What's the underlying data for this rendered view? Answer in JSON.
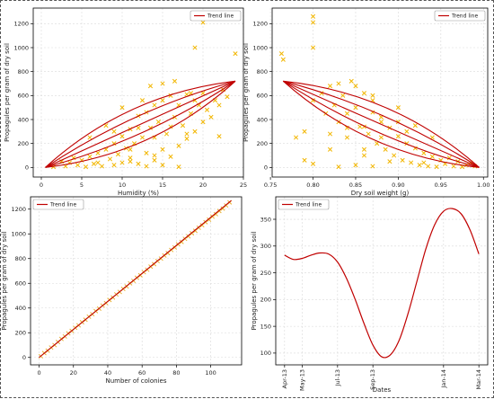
{
  "colors": {
    "trend": "#c00000",
    "marker": "#f2b600",
    "grid": "#d9d9d9",
    "axis": "#000000",
    "legend_border": "#999999"
  },
  "chart_data": [
    {
      "type": "scatter",
      "ylabel": "Propagules per gram of dry soil",
      "xlabel": "Humidity (%)",
      "legend": "Trend line",
      "legend_position": "top-right",
      "grid": true,
      "xlim": [
        -1,
        25
      ],
      "ylim": [
        -80,
        1330
      ],
      "xticks": [
        0,
        5,
        10,
        15,
        20,
        25
      ],
      "yticks": [
        0,
        200,
        400,
        600,
        800,
        1000,
        1200
      ],
      "trend_lines": [
        {
          "x": [
            0.5,
            24
          ],
          "y": [
            0,
            720
          ],
          "curvature": 0.16
        },
        {
          "x": [
            0.5,
            24
          ],
          "y": [
            0,
            720
          ],
          "curvature": 0.08
        },
        {
          "x": [
            0.5,
            24
          ],
          "y": [
            0,
            720
          ],
          "curvature": 0.0
        },
        {
          "x": [
            0.5,
            24
          ],
          "y": [
            0,
            720
          ],
          "curvature": -0.08
        },
        {
          "x": [
            0.5,
            24
          ],
          "y": [
            0,
            720
          ],
          "curvature": -0.16
        }
      ],
      "marker": "x",
      "points_note": "",
      "points": [
        [
          1.5,
          5
        ],
        [
          2.5,
          50
        ],
        [
          3,
          10
        ],
        [
          3.5,
          40
        ],
        [
          4,
          80
        ],
        [
          4.5,
          20
        ],
        [
          5,
          60
        ],
        [
          5.5,
          5
        ],
        [
          6,
          90
        ],
        [
          6.5,
          30
        ],
        [
          7,
          120
        ],
        [
          7.5,
          10
        ],
        [
          8,
          150
        ],
        [
          8.5,
          70
        ],
        [
          9,
          20
        ],
        [
          9,
          200
        ],
        [
          9.5,
          110
        ],
        [
          10,
          40
        ],
        [
          10,
          260
        ],
        [
          10.5,
          160
        ],
        [
          11,
          80
        ],
        [
          11,
          320
        ],
        [
          11.5,
          200
        ],
        [
          12,
          30
        ],
        [
          12,
          430
        ],
        [
          12.5,
          250
        ],
        [
          13,
          120
        ],
        [
          13,
          460
        ],
        [
          13.5,
          330
        ],
        [
          14,
          60
        ],
        [
          14,
          520
        ],
        [
          14.5,
          380
        ],
        [
          15,
          150
        ],
        [
          15,
          560
        ],
        [
          15.5,
          280
        ],
        [
          16,
          90
        ],
        [
          16,
          600
        ],
        [
          16.5,
          420
        ],
        [
          17,
          180
        ],
        [
          17,
          520
        ],
        [
          17.5,
          350
        ],
        [
          18,
          240
        ],
        [
          18,
          610
        ],
        [
          18.5,
          450
        ],
        [
          19,
          300
        ],
        [
          19,
          560
        ],
        [
          19.5,
          520
        ],
        [
          20,
          380
        ],
        [
          20,
          620
        ],
        [
          20.5,
          480
        ],
        [
          21,
          420
        ],
        [
          21.5,
          560
        ],
        [
          22,
          520
        ],
        [
          22.5,
          650
        ],
        [
          23,
          590
        ],
        [
          19,
          1000
        ],
        [
          20,
          1210
        ],
        [
          20,
          1260
        ],
        [
          24,
          950
        ],
        [
          22,
          260
        ],
        [
          13,
          10
        ],
        [
          15,
          20
        ],
        [
          17,
          5
        ],
        [
          11,
          150
        ],
        [
          12,
          330
        ],
        [
          14,
          250
        ],
        [
          16,
          340
        ],
        [
          18,
          280
        ],
        [
          13.5,
          680
        ],
        [
          15,
          700
        ],
        [
          16.5,
          720
        ],
        [
          18.5,
          620
        ],
        [
          12.5,
          560
        ],
        [
          10,
          500
        ],
        [
          8,
          350
        ],
        [
          6,
          250
        ],
        [
          7,
          40
        ],
        [
          9,
          300
        ],
        [
          11,
          50
        ],
        [
          14,
          100
        ]
      ]
    },
    {
      "type": "scatter",
      "ylabel": "Propagules per gram of dry soil",
      "xlabel": "Dry soil weight (g)",
      "legend": "Trend line",
      "legend_position": "top-right",
      "grid": true,
      "xlim": [
        0.752,
        1.005
      ],
      "ylim": [
        -80,
        1330
      ],
      "xticks": [
        0.75,
        0.8,
        0.85,
        0.9,
        0.95,
        1.0
      ],
      "xtick_labels": [
        "0.75",
        "0.80",
        "0.85",
        "0.90",
        "0.95",
        "1.00"
      ],
      "yticks": [
        0,
        200,
        400,
        600,
        800,
        1000,
        1200
      ],
      "trend_lines": [
        {
          "x": [
            0.765,
            0.995
          ],
          "y": [
            720,
            0
          ],
          "curvature": 0.16
        },
        {
          "x": [
            0.765,
            0.995
          ],
          "y": [
            720,
            0
          ],
          "curvature": 0.08
        },
        {
          "x": [
            0.765,
            0.995
          ],
          "y": [
            720,
            0
          ],
          "curvature": 0.0
        },
        {
          "x": [
            0.765,
            0.995
          ],
          "y": [
            720,
            0
          ],
          "curvature": -0.08
        },
        {
          "x": [
            0.765,
            0.995
          ],
          "y": [
            720,
            0
          ],
          "curvature": -0.16
        }
      ],
      "marker": "x",
      "points": [
        [
          0.8,
          1260
        ],
        [
          0.8,
          1210
        ],
        [
          0.8,
          1000
        ],
        [
          0.763,
          950
        ],
        [
          0.765,
          900
        ],
        [
          0.78,
          250
        ],
        [
          0.79,
          300
        ],
        [
          0.8,
          560
        ],
        [
          0.81,
          620
        ],
        [
          0.815,
          450
        ],
        [
          0.82,
          680
        ],
        [
          0.825,
          520
        ],
        [
          0.83,
          380
        ],
        [
          0.835,
          600
        ],
        [
          0.84,
          250
        ],
        [
          0.845,
          720
        ],
        [
          0.85,
          500
        ],
        [
          0.855,
          340
        ],
        [
          0.86,
          620
        ],
        [
          0.865,
          280
        ],
        [
          0.87,
          460
        ],
        [
          0.875,
          200
        ],
        [
          0.88,
          380
        ],
        [
          0.885,
          150
        ],
        [
          0.89,
          330
        ],
        [
          0.895,
          100
        ],
        [
          0.9,
          260
        ],
        [
          0.905,
          60
        ],
        [
          0.91,
          200
        ],
        [
          0.915,
          40
        ],
        [
          0.92,
          160
        ],
        [
          0.925,
          20
        ],
        [
          0.93,
          120
        ],
        [
          0.935,
          10
        ],
        [
          0.94,
          90
        ],
        [
          0.945,
          5
        ],
        [
          0.95,
          60
        ],
        [
          0.955,
          30
        ],
        [
          0.96,
          80
        ],
        [
          0.965,
          10
        ],
        [
          0.97,
          50
        ],
        [
          0.975,
          5
        ],
        [
          0.98,
          20
        ],
        [
          0.985,
          40
        ],
        [
          0.99,
          10
        ],
        [
          0.85,
          20
        ],
        [
          0.87,
          10
        ],
        [
          0.83,
          5
        ],
        [
          0.86,
          150
        ],
        [
          0.88,
          250
        ],
        [
          0.84,
          330
        ],
        [
          0.82,
          280
        ],
        [
          0.86,
          340
        ],
        [
          0.84,
          450
        ],
        [
          0.87,
          560
        ],
        [
          0.85,
          680
        ],
        [
          0.83,
          700
        ],
        [
          0.9,
          500
        ],
        [
          0.92,
          350
        ],
        [
          0.94,
          250
        ],
        [
          0.93,
          40
        ],
        [
          0.91,
          300
        ],
        [
          0.89,
          50
        ],
        [
          0.86,
          100
        ],
        [
          0.82,
          150
        ],
        [
          0.8,
          30
        ],
        [
          0.79,
          60
        ],
        [
          0.88,
          420
        ],
        [
          0.9,
          380
        ],
        [
          0.87,
          600
        ]
      ]
    },
    {
      "type": "scatter",
      "ylabel": "Propagules per gram of dry soil",
      "xlabel": "Number of colonies",
      "legend": "Trend line",
      "legend_position": "top-left",
      "grid": true,
      "xlim": [
        -5,
        118
      ],
      "ylim": [
        -60,
        1300
      ],
      "xticks": [
        0,
        20,
        40,
        60,
        80,
        100
      ],
      "yticks": [
        0,
        200,
        400,
        600,
        800,
        1000,
        1200
      ],
      "trend_lines": [
        {
          "x": [
            0,
            112
          ],
          "y": [
            0,
            1270
          ],
          "curvature": 0.0
        }
      ],
      "marker": "x",
      "points": [
        [
          1,
          10
        ],
        [
          3,
          35
        ],
        [
          5,
          55
        ],
        [
          7,
          80
        ],
        [
          9,
          100
        ],
        [
          11,
          125
        ],
        [
          13,
          150
        ],
        [
          15,
          170
        ],
        [
          17,
          195
        ],
        [
          19,
          215
        ],
        [
          21,
          240
        ],
        [
          23,
          260
        ],
        [
          25,
          285
        ],
        [
          27,
          305
        ],
        [
          29,
          330
        ],
        [
          31,
          350
        ],
        [
          33,
          375
        ],
        [
          35,
          395
        ],
        [
          37,
          420
        ],
        [
          39,
          440
        ],
        [
          41,
          465
        ],
        [
          43,
          485
        ],
        [
          45,
          510
        ],
        [
          47,
          530
        ],
        [
          49,
          555
        ],
        [
          51,
          575
        ],
        [
          53,
          600
        ],
        [
          55,
          620
        ],
        [
          57,
          645
        ],
        [
          59,
          665
        ],
        [
          61,
          690
        ],
        [
          63,
          710
        ],
        [
          65,
          735
        ],
        [
          67,
          755
        ],
        [
          69,
          780
        ],
        [
          71,
          800
        ],
        [
          73,
          825
        ],
        [
          75,
          845
        ],
        [
          77,
          870
        ],
        [
          79,
          890
        ],
        [
          81,
          915
        ],
        [
          83,
          935
        ],
        [
          85,
          960
        ],
        [
          87,
          980
        ],
        [
          89,
          1005
        ],
        [
          91,
          1025
        ],
        [
          93,
          1050
        ],
        [
          95,
          1070
        ],
        [
          97,
          1095
        ],
        [
          99,
          1115
        ],
        [
          101,
          1140
        ],
        [
          103,
          1160
        ],
        [
          105,
          1185
        ],
        [
          107,
          1205
        ],
        [
          109,
          1230
        ],
        [
          111,
          1255
        ]
      ]
    },
    {
      "type": "line",
      "ylabel": "Propagules per gram of dry soil",
      "xlabel": "Dates",
      "legend": "Trend line",
      "legend_position": "top-left",
      "grid": true,
      "x_months": [
        0,
        1,
        2,
        3,
        4,
        5,
        6,
        7,
        8,
        9,
        10,
        11
      ],
      "xticks": [
        0,
        1,
        3,
        5,
        9,
        11
      ],
      "xtick_labels": [
        "Apr-13",
        "May-13",
        "Jul-13",
        "Sep-13",
        "Jan-14",
        "Mar-14"
      ],
      "xlim": [
        -0.5,
        11.5
      ],
      "ylim": [
        78,
        392
      ],
      "yticks": [
        100,
        150,
        200,
        250,
        300,
        350
      ],
      "x": [
        0,
        0.5,
        1,
        1.5,
        2,
        2.5,
        3,
        3.5,
        4,
        4.5,
        5,
        5.5,
        6,
        6.5,
        7,
        7.5,
        8,
        8.5,
        9,
        9.5,
        10,
        10.5,
        11
      ],
      "y": [
        283,
        275,
        277,
        283,
        287,
        285,
        270,
        240,
        200,
        155,
        115,
        93,
        97,
        125,
        175,
        235,
        295,
        340,
        365,
        370,
        360,
        330,
        285
      ]
    }
  ]
}
